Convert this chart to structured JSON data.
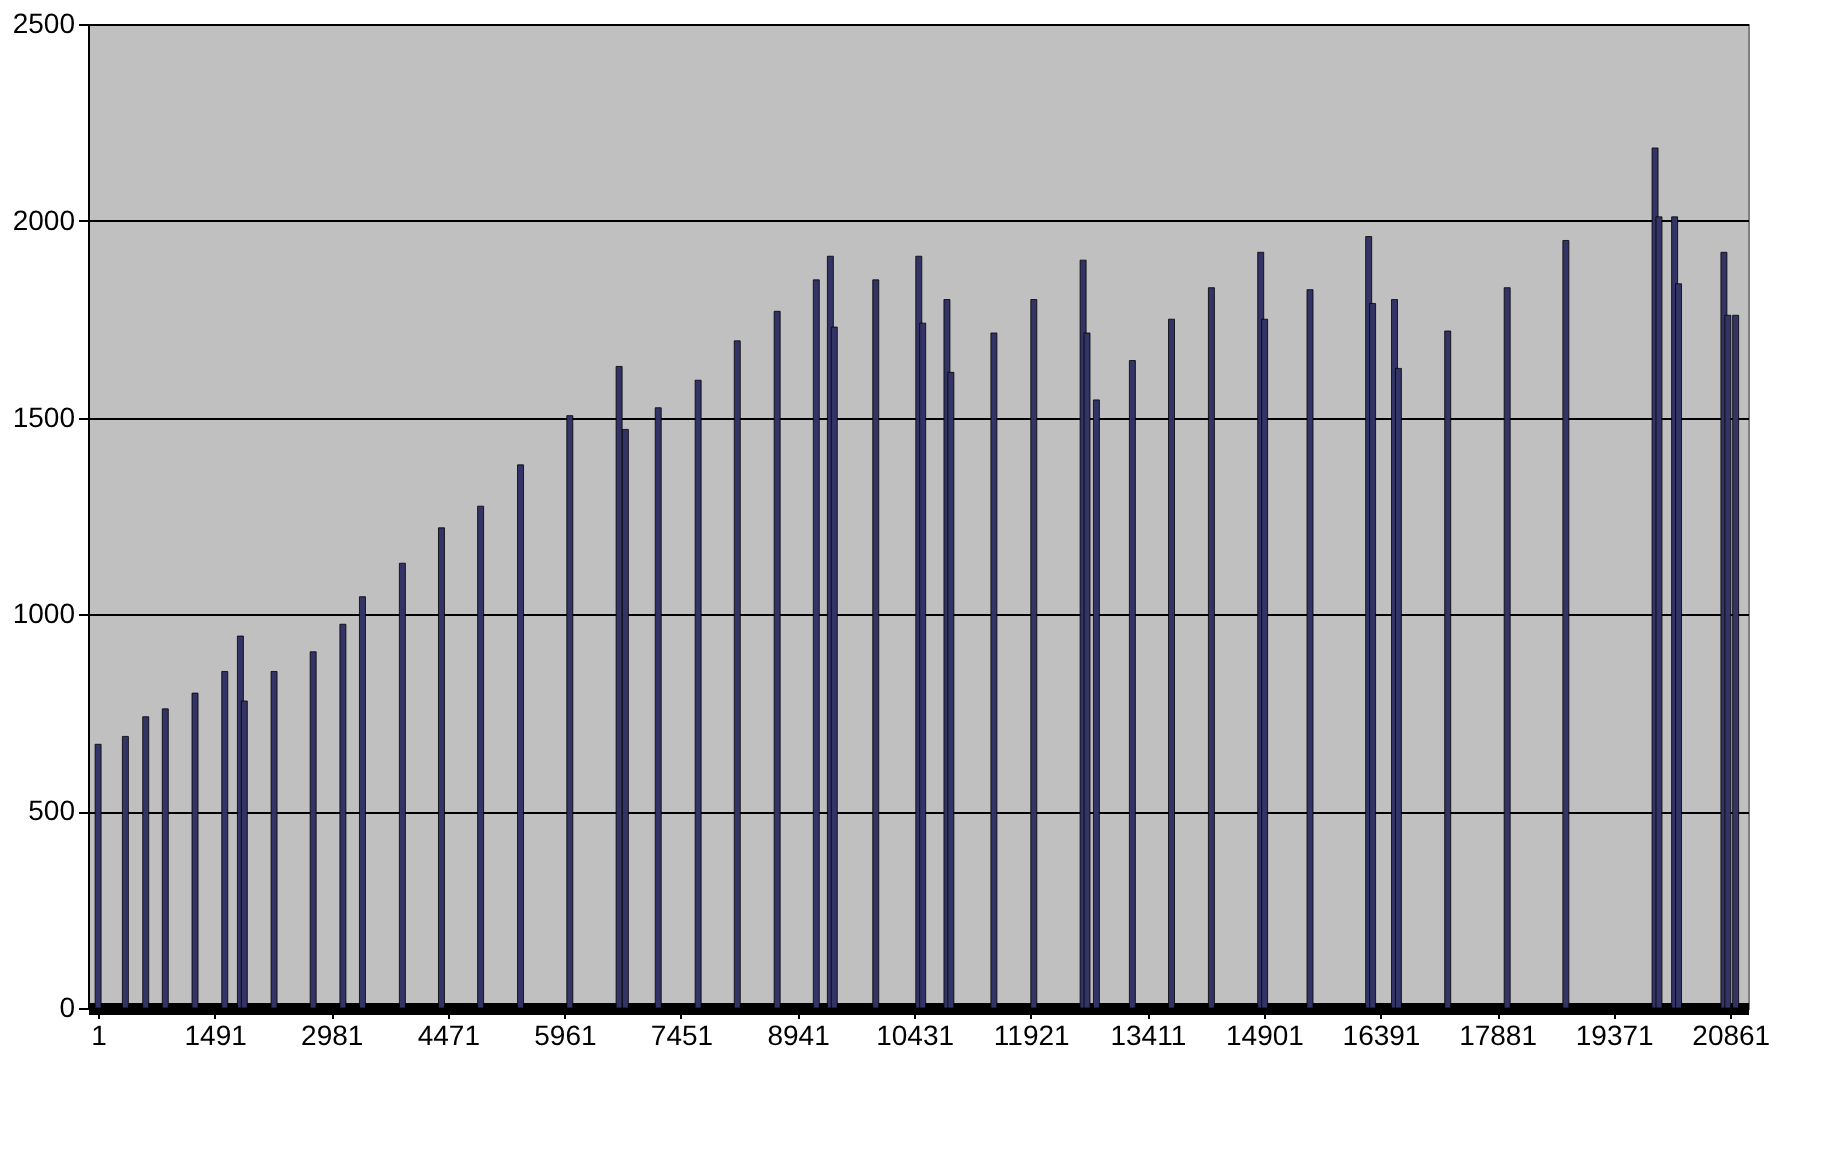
{
  "chart_data": {
    "type": "bar",
    "x": [
      1,
      350,
      610,
      860,
      1240,
      1620,
      1820,
      1870,
      2250,
      2750,
      3130,
      3380,
      3890,
      4390,
      4890,
      5400,
      6030,
      6660,
      6740,
      7160,
      7670,
      8170,
      8680,
      9180,
      9360,
      9410,
      9940,
      10490,
      10540,
      10850,
      10900,
      11450,
      11960,
      12590,
      12640,
      12760,
      13220,
      13720,
      14230,
      14860,
      14910,
      15490,
      16240,
      16290,
      16570,
      16620,
      17250,
      18010,
      18760,
      19900,
      19950,
      20150,
      20200,
      20780,
      20830,
      20930
    ],
    "series": [
      {
        "color": "#333366",
        "values": [
          670,
          690,
          740,
          760,
          800,
          855,
          945,
          780,
          855,
          905,
          975,
          1045,
          1130,
          1220,
          1275,
          1380,
          1505,
          1630,
          1470,
          1525,
          1595,
          1695,
          1770,
          1850,
          1910,
          1730,
          1850,
          1910,
          1740,
          1800,
          1615,
          1715,
          1800,
          1900,
          1715,
          1545,
          1645,
          1750,
          1830,
          1920,
          1750,
          1825,
          1960,
          1790,
          1800,
          1625,
          1720,
          1830,
          1950,
          2185,
          2010,
          2010,
          1840,
          1920,
          1760,
          1760
        ]
      }
    ],
    "xlim": [
      0,
      20960
    ],
    "xticks": [
      1,
      1491,
      2981,
      4471,
      5961,
      7451,
      8941,
      10431,
      11921,
      13411,
      14901,
      16391,
      17881,
      19371,
      20861
    ],
    "ylim": [
      0,
      2500
    ],
    "yticks": [
      0,
      500,
      1000,
      1500,
      2000,
      2500
    ],
    "grid": "y",
    "legend": false
  }
}
